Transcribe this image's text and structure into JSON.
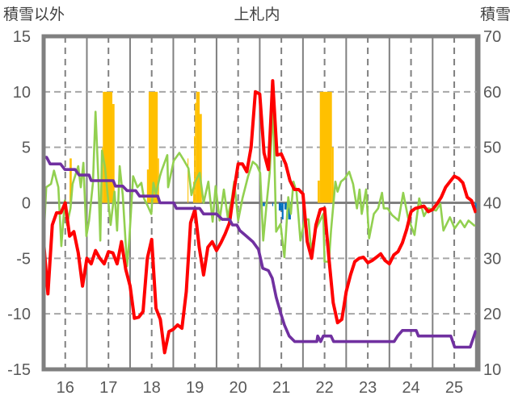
{
  "chart_data": {
    "type": "line",
    "title": "上札内",
    "ylabel": "積雪以外",
    "ylabel_right": "積雪",
    "xlim": [
      15.5,
      25.56
    ],
    "ylim": [
      -15,
      15
    ],
    "ylim_right": [
      10,
      70
    ],
    "x_ticks": [
      "16",
      "17",
      "18",
      "19",
      "20",
      "21",
      "22",
      "23",
      "24",
      "25"
    ],
    "x_tick_values": [
      16,
      17,
      18,
      19,
      20,
      21,
      22,
      23,
      24,
      25
    ],
    "y_ticks": [
      "15",
      "10",
      "5",
      "0",
      "-5",
      "-10",
      "-15"
    ],
    "y_tick_values": [
      15,
      10,
      5,
      0,
      -5,
      -10,
      -15
    ],
    "y_ticks_right": [
      "70",
      "60",
      "50",
      "40",
      "30",
      "20",
      "10"
    ],
    "grid": true,
    "colors": {
      "red": "#FF0000",
      "green": "#92D050",
      "purple": "#7030A0",
      "orange": "#FFC000",
      "blue": "#0070C0",
      "axis": "#808080"
    },
    "series": [
      {
        "name": "red",
        "color": "#FF0000",
        "x_start": 15.5,
        "x_step": 0.1,
        "values": [
          -3.5,
          -8.2,
          -2,
          -0.9,
          -0.9,
          0,
          -3,
          -2.6,
          -4.5,
          -7.5,
          -5,
          -5.5,
          -4.3,
          -5,
          -5.5,
          -4.4,
          -4.5,
          -5.5,
          -3.5,
          -6,
          -7.5,
          -10.4,
          -10.3,
          -9.8,
          -5,
          -3.3,
          -9.5,
          -10.5,
          -13.5,
          -11.6,
          -11.4,
          -11,
          -11.3,
          -8,
          -1.8,
          -0.6,
          -4,
          -6.5,
          -4,
          -3.5,
          -4.3,
          -3.6,
          -2.8,
          -1.8,
          1,
          3.5,
          3.5,
          2.8,
          5,
          10,
          9.8,
          4.5,
          3,
          11,
          4.3,
          4.4,
          3.5,
          2,
          1.2,
          1.2,
          0.8,
          -3.5,
          -5,
          -2,
          -0.6,
          -0.5,
          -5,
          -9,
          -10.8,
          -10.5,
          -8,
          -6.5,
          -5.3,
          -5,
          -4.9,
          -5.4,
          -5.2,
          -4.9,
          -4.6,
          -5.2,
          -5.5,
          -4.7,
          -4.4,
          -3.6,
          -2.4,
          -0.8,
          -0.5,
          -0.4,
          -0.3,
          -0.8,
          -0.6,
          -0.1,
          0.5,
          1.4,
          1.9,
          2.4,
          2.2,
          1.8,
          0.5,
          0.2,
          -0.9
        ]
      },
      {
        "name": "green",
        "color": "#92D050",
        "points": [
          [
            15.5,
            -3.4
          ],
          [
            15.56,
            1.4
          ],
          [
            15.67,
            1.7
          ],
          [
            15.74,
            2.9
          ],
          [
            15.84,
            1.4
          ],
          [
            15.91,
            -3.9
          ],
          [
            15.99,
            0.2
          ],
          [
            16.04,
            -2
          ],
          [
            16.12,
            -0.5
          ],
          [
            16.17,
            1.7
          ],
          [
            16.3,
            3.3
          ],
          [
            16.36,
            1.4
          ],
          [
            16.42,
            3.6
          ],
          [
            16.49,
            -3
          ],
          [
            16.55,
            -1.6
          ],
          [
            16.64,
            1.8
          ],
          [
            16.7,
            8.2
          ],
          [
            16.77,
            1.8
          ],
          [
            16.81,
            -3.4
          ],
          [
            16.85,
            4.7
          ],
          [
            16.92,
            3.2
          ],
          [
            17.05,
            -2
          ],
          [
            17.14,
            1
          ],
          [
            17.2,
            -2.5
          ],
          [
            17.26,
            3.3
          ],
          [
            17.33,
            0.7
          ],
          [
            17.43,
            -5.7
          ],
          [
            17.48,
            -3.4
          ],
          [
            17.57,
            2.4
          ],
          [
            17.67,
            1.4
          ],
          [
            17.76,
            1.8
          ],
          [
            17.82,
            0.4
          ],
          [
            17.91,
            -0.3
          ],
          [
            17.99,
            -1
          ],
          [
            18.04,
            1.8
          ],
          [
            18.1,
            0.8
          ],
          [
            18.19,
            2.4
          ],
          [
            18.23,
            2.9
          ],
          [
            18.36,
            4.3
          ],
          [
            18.38,
            1.4
          ],
          [
            18.51,
            3.8
          ],
          [
            18.64,
            4.5
          ],
          [
            18.75,
            3.8
          ],
          [
            18.85,
            3.1
          ],
          [
            18.92,
            0.7
          ],
          [
            19.01,
            1.9
          ],
          [
            19.11,
            2.7
          ],
          [
            19.2,
            0
          ],
          [
            19.31,
            1.9
          ],
          [
            19.41,
            -1.7
          ],
          [
            19.48,
            1.5
          ],
          [
            19.57,
            -1.6
          ],
          [
            19.67,
            1.2
          ],
          [
            19.76,
            -1.3
          ],
          [
            19.86,
            0.5
          ],
          [
            19.91,
            1.9
          ],
          [
            20.0,
            -1.6
          ],
          [
            20.1,
            0.4
          ],
          [
            20.23,
            2.4
          ],
          [
            20.34,
            3.7
          ],
          [
            20.43,
            3.4
          ],
          [
            20.51,
            2.7
          ],
          [
            20.58,
            -3.4
          ],
          [
            20.66,
            0
          ],
          [
            20.73,
            2.7
          ],
          [
            20.81,
            8.9
          ],
          [
            20.88,
            -2.6
          ],
          [
            20.98,
            -1.9
          ],
          [
            21.07,
            -4.9
          ],
          [
            21.16,
            0.5
          ],
          [
            21.22,
            -1
          ],
          [
            21.28,
            1.9
          ],
          [
            21.35,
            1
          ],
          [
            21.44,
            -3.4
          ],
          [
            21.54,
            -1.5
          ],
          [
            21.63,
            -1.5
          ],
          [
            21.69,
            -4.4
          ],
          [
            21.78,
            -2.5
          ],
          [
            21.91,
            -1.5
          ],
          [
            21.97,
            -1
          ],
          [
            22.0,
            -5.3
          ],
          [
            22.1,
            -5.3
          ],
          [
            22.15,
            -2.5
          ],
          [
            22.25,
            1.9
          ],
          [
            22.3,
            1
          ],
          [
            22.38,
            1.9
          ],
          [
            22.47,
            2.2
          ],
          [
            22.57,
            2.8
          ],
          [
            22.66,
            1.7
          ],
          [
            22.75,
            -0.5
          ],
          [
            22.81,
            1.2
          ],
          [
            22.86,
            -1
          ],
          [
            22.96,
            1.2
          ],
          [
            23.03,
            -3.2
          ],
          [
            23.14,
            -1
          ],
          [
            23.24,
            -0.5
          ],
          [
            23.33,
            0.9
          ],
          [
            23.37,
            -0.5
          ],
          [
            23.46,
            -0.5
          ],
          [
            23.56,
            -1.1
          ],
          [
            23.71,
            -1.6
          ],
          [
            23.82,
            0.9
          ],
          [
            23.93,
            -1.3
          ],
          [
            24.08,
            -2.9
          ],
          [
            24.19,
            0.4
          ],
          [
            24.3,
            -1.2
          ],
          [
            24.4,
            -0.5
          ],
          [
            24.58,
            -0.7
          ],
          [
            24.68,
            -0.1
          ],
          [
            24.75,
            -2.5
          ],
          [
            24.9,
            -1.3
          ],
          [
            25.01,
            -2.3
          ],
          [
            25.14,
            -1.6
          ],
          [
            25.24,
            -2.2
          ],
          [
            25.33,
            -1.6
          ],
          [
            25.48,
            -2.1
          ]
        ]
      },
      {
        "name": "purple",
        "color": "#7030A0",
        "points": [
          [
            15.5,
            4.1
          ],
          [
            15.57,
            4.1
          ],
          [
            15.65,
            3.5
          ],
          [
            15.89,
            3.5
          ],
          [
            15.99,
            3.0
          ],
          [
            16.23,
            3.0
          ],
          [
            16.32,
            2.5
          ],
          [
            16.55,
            2.5
          ],
          [
            16.6,
            2.0
          ],
          [
            17.11,
            2.0
          ],
          [
            17.16,
            1.5
          ],
          [
            17.33,
            1.5
          ],
          [
            17.43,
            1.1
          ],
          [
            17.63,
            1.1
          ],
          [
            17.72,
            0.6
          ],
          [
            18.14,
            0.6
          ],
          [
            18.19,
            0
          ],
          [
            18.51,
            0
          ],
          [
            18.57,
            -0.5
          ],
          [
            19.11,
            -0.5
          ],
          [
            19.2,
            -1
          ],
          [
            19.5,
            -1
          ],
          [
            19.63,
            -1.5
          ],
          [
            19.8,
            -1.5
          ],
          [
            19.87,
            -2
          ],
          [
            19.97,
            -2
          ],
          [
            20.04,
            -2.5
          ],
          [
            20.19,
            -3
          ],
          [
            20.34,
            -3.5
          ],
          [
            20.47,
            -4.2
          ],
          [
            20.57,
            -5.9
          ],
          [
            20.7,
            -6.1
          ],
          [
            20.79,
            -6.8
          ],
          [
            20.88,
            -8.5
          ],
          [
            20.99,
            -10
          ],
          [
            21.07,
            -11
          ],
          [
            21.18,
            -12
          ],
          [
            21.31,
            -12.5
          ],
          [
            21.82,
            -12.5
          ],
          [
            21.84,
            -12
          ],
          [
            21.91,
            -12.5
          ],
          [
            21.97,
            -12
          ],
          [
            22.15,
            -12
          ],
          [
            22.21,
            -12.5
          ],
          [
            23.61,
            -12.5
          ],
          [
            23.69,
            -12
          ],
          [
            23.8,
            -11.5
          ],
          [
            24.12,
            -11.5
          ],
          [
            24.17,
            -12
          ],
          [
            24.92,
            -12
          ],
          [
            25.01,
            -13
          ],
          [
            25.37,
            -13
          ],
          [
            25.5,
            -11.5
          ]
        ]
      }
    ],
    "bars": [
      {
        "name": "orange",
        "color": "#FFC000",
        "items": [
          [
            16.1,
            16.15,
            4
          ],
          [
            16.85,
            16.87,
            5
          ],
          [
            16.87,
            17.09,
            10
          ],
          [
            17.09,
            17.14,
            8.9
          ],
          [
            17.89,
            17.93,
            3
          ],
          [
            17.93,
            18.14,
            10
          ],
          [
            18.14,
            18.17,
            4
          ],
          [
            18.83,
            18.85,
            4
          ],
          [
            18.96,
            18.98,
            1.9
          ],
          [
            18.98,
            19.0,
            6
          ],
          [
            19.0,
            19.03,
            9
          ],
          [
            19.03,
            19.11,
            10
          ],
          [
            19.11,
            19.16,
            8
          ],
          [
            21.84,
            21.89,
            2
          ],
          [
            21.89,
            22.17,
            10
          ],
          [
            22.17,
            22.21,
            5
          ]
        ]
      },
      {
        "name": "blue",
        "color": "#0070C0",
        "items": [
          [
            20.57,
            20.62,
            -0.3
          ],
          [
            20.79,
            20.81,
            -0.3
          ],
          [
            20.94,
            21.01,
            -0.7
          ],
          [
            21.01,
            21.05,
            -1.5
          ],
          [
            21.07,
            21.13,
            -0.6
          ],
          [
            21.16,
            21.22,
            -1.5
          ],
          [
            25.48,
            25.56,
            -0.9
          ]
        ]
      }
    ]
  }
}
